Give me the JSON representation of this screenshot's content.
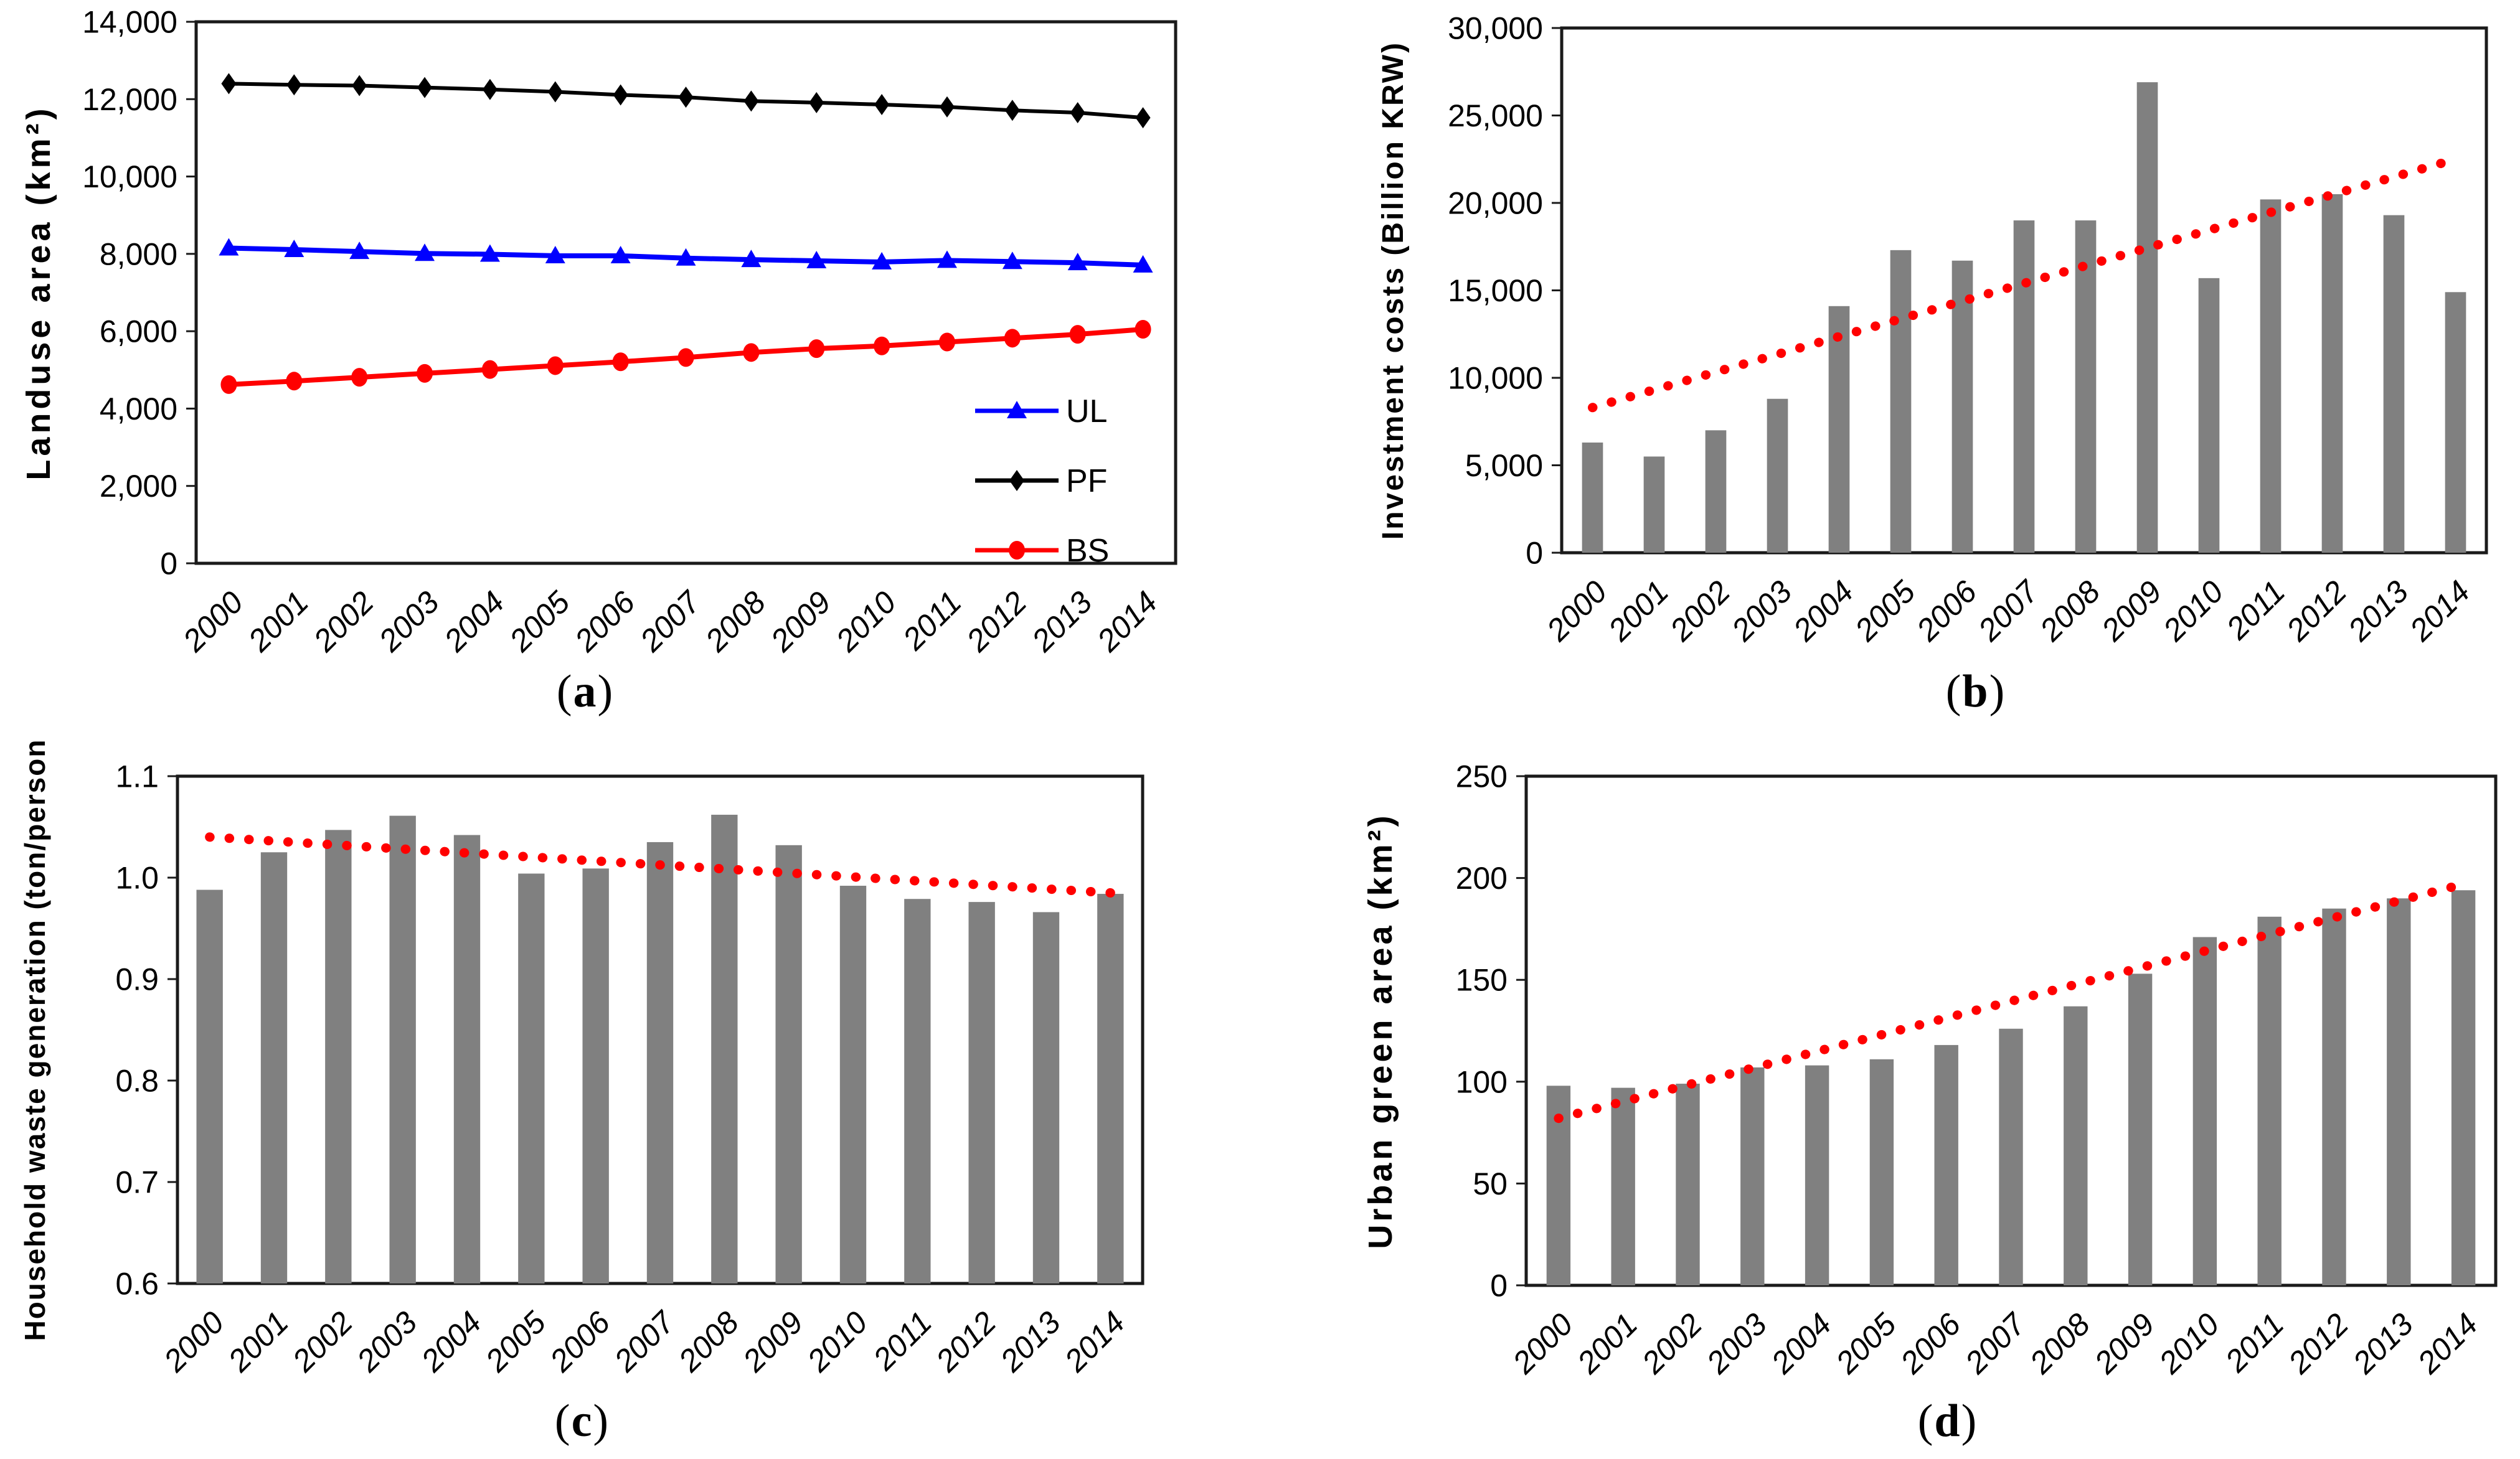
{
  "page": {
    "background": "#ffffff"
  },
  "captions": [
    {
      "open": "(",
      "letter": "a",
      "close": ")"
    },
    {
      "open": "(",
      "letter": "b",
      "close": ")"
    },
    {
      "open": "(",
      "letter": "c",
      "close": ")"
    },
    {
      "open": "(",
      "letter": "d",
      "close": ")"
    }
  ],
  "chart_data": [
    {
      "id": "a",
      "type": "line",
      "title": "",
      "ylabel": "Landuse area (km²)",
      "xlabel": "",
      "categories": [
        "2000",
        "2001",
        "2002",
        "2003",
        "2004",
        "2005",
        "2006",
        "2007",
        "2008",
        "2009",
        "2010",
        "2011",
        "2012",
        "2013",
        "2014"
      ],
      "ylim": [
        0,
        14000
      ],
      "yticks": [
        {
          "v": 0,
          "label": "0"
        },
        {
          "v": 2000,
          "label": "2,000"
        },
        {
          "v": 4000,
          "label": "4,000"
        },
        {
          "v": 6000,
          "label": "6,000"
        },
        {
          "v": 8000,
          "label": "8,000"
        },
        {
          "v": 10000,
          "label": "10,000"
        },
        {
          "v": 12000,
          "label": "12,000"
        },
        {
          "v": 14000,
          "label": "14,000"
        }
      ],
      "grid": false,
      "legend_position": "inside-bottom-right",
      "series": [
        {
          "name": "UL",
          "color": "#0000ff",
          "marker": "triangle",
          "values": [
            8150,
            8110,
            8060,
            8010,
            7990,
            7950,
            7950,
            7890,
            7850,
            7820,
            7790,
            7830,
            7800,
            7770,
            7710
          ]
        },
        {
          "name": "PF",
          "color": "#000000",
          "marker": "diamond",
          "values": [
            12400,
            12370,
            12350,
            12300,
            12250,
            12190,
            12110,
            12050,
            11950,
            11910,
            11860,
            11800,
            11710,
            11650,
            11520
          ]
        },
        {
          "name": "BS",
          "color": "#ff0000",
          "marker": "circle",
          "values": [
            4620,
            4710,
            4810,
            4910,
            5010,
            5110,
            5210,
            5320,
            5450,
            5550,
            5620,
            5720,
            5820,
            5920,
            6050
          ]
        }
      ]
    },
    {
      "id": "b",
      "type": "bar",
      "title": "",
      "ylabel": "Investment costs (Billion KRW)",
      "xlabel": "",
      "categories": [
        "2000",
        "2001",
        "2002",
        "2003",
        "2004",
        "2005",
        "2006",
        "2007",
        "2008",
        "2009",
        "2010",
        "2011",
        "2012",
        "2013",
        "2014"
      ],
      "ylim": [
        0,
        30000
      ],
      "yticks": [
        {
          "v": 0,
          "label": "0"
        },
        {
          "v": 5000,
          "label": "5,000"
        },
        {
          "v": 10000,
          "label": "10,000"
        },
        {
          "v": 15000,
          "label": "15,000"
        },
        {
          "v": 20000,
          "label": "20,000"
        },
        {
          "v": 25000,
          "label": "25,000"
        },
        {
          "v": 30000,
          "label": "30,000"
        }
      ],
      "grid": false,
      "bar_color": "#808080",
      "values": [
        6300,
        5500,
        7000,
        8800,
        14100,
        17300,
        16700,
        19000,
        19000,
        26900,
        15700,
        20200,
        20500,
        19300,
        14900
      ],
      "trendline": {
        "color": "#ff0000",
        "style": "dotted",
        "start": 8300,
        "end": 22500
      }
    },
    {
      "id": "c",
      "type": "bar",
      "title": "",
      "ylabel": "Household waste generation (ton/person )",
      "xlabel": "",
      "categories": [
        "2000",
        "2001",
        "2002",
        "2003",
        "2004",
        "2005",
        "2006",
        "2007",
        "2008",
        "2009",
        "2010",
        "2011",
        "2012",
        "2013",
        "2014"
      ],
      "ylim": [
        0.6,
        1.1
      ],
      "yticks": [
        {
          "v": 0.6,
          "label": "0.6"
        },
        {
          "v": 0.7,
          "label": "0.7"
        },
        {
          "v": 0.8,
          "label": "0.8"
        },
        {
          "v": 0.9,
          "label": "0.9"
        },
        {
          "v": 1.0,
          "label": "1.0"
        },
        {
          "v": 1.1,
          "label": "1.1"
        }
      ],
      "grid": false,
      "bar_color": "#808080",
      "values": [
        0.988,
        1.025,
        1.047,
        1.061,
        1.042,
        1.004,
        1.009,
        1.035,
        1.062,
        1.032,
        0.992,
        0.979,
        0.976,
        0.966,
        0.984
      ],
      "trendline": {
        "color": "#ff0000",
        "style": "dotted",
        "start": 1.04,
        "end": 0.985
      }
    },
    {
      "id": "d",
      "type": "bar",
      "title": "",
      "ylabel": "Urban green area (km²)",
      "xlabel": "",
      "categories": [
        "2000",
        "2001",
        "2002",
        "2003",
        "2004",
        "2005",
        "2006",
        "2007",
        "2008",
        "2009",
        "2010",
        "2011",
        "2012",
        "2013",
        "2014"
      ],
      "ylim": [
        0,
        250
      ],
      "yticks": [
        {
          "v": 0,
          "label": "0"
        },
        {
          "v": 50,
          "label": "50"
        },
        {
          "v": 100,
          "label": "100"
        },
        {
          "v": 150,
          "label": "150"
        },
        {
          "v": 200,
          "label": "200"
        },
        {
          "v": 250,
          "label": "250"
        }
      ],
      "grid": false,
      "bar_color": "#808080",
      "values": [
        98,
        97,
        99,
        107,
        108,
        111,
        118,
        126,
        137,
        153,
        171,
        181,
        185,
        190,
        194
      ],
      "trendline": {
        "color": "#ff0000",
        "style": "dotted",
        "start": 82,
        "end": 197
      }
    }
  ]
}
